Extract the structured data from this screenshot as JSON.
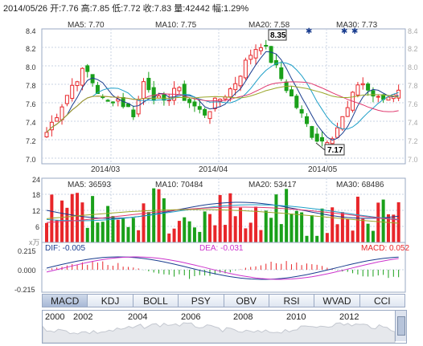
{
  "header": {
    "text": "2014/05/26 开:7.76  高:7.85  低:7.72  收:7.83  量:42442  幅:1.29%"
  },
  "price_panel": {
    "ma_labels": [
      {
        "text": "MA5: 7.70",
        "color": "#1a3d8f"
      },
      {
        "text": "MA10: 7.75",
        "color": "#1fa0c8"
      },
      {
        "text": "MA20: 7.58",
        "color": "#e0386e"
      },
      {
        "text": "MA30: 7.73",
        "color": "#9aa62a"
      }
    ],
    "y_ticks": [
      "8.4",
      "8.2",
      "8.0",
      "7.8",
      "7.6",
      "7.4",
      "7.2",
      "7.0"
    ],
    "x_labels": [
      "2014/03",
      "2014/04",
      "2014/05"
    ],
    "high_callout": "8.35",
    "low_callout": "7.17"
  },
  "volume_panel": {
    "ma_labels": [
      {
        "text": "MA5: 36593",
        "color": "#1a3d8f"
      },
      {
        "text": "MA10: 70484",
        "color": "#1fa0c8"
      },
      {
        "text": "MA20: 53417",
        "color": "#e0386e"
      },
      {
        "text": "MA30: 68486",
        "color": "#9aa62a"
      }
    ],
    "y_ticks": [
      "24",
      "18",
      "12",
      "6"
    ],
    "unit": "x万"
  },
  "macd_panel": {
    "dif_label": "DIF: -0.005",
    "dea_label": "DEA: -0.031",
    "macd_label": "MACD: 0.052",
    "y_ticks": [
      "0.215",
      "0.000",
      "-0.215"
    ]
  },
  "tabs": [
    "MACD",
    "KDJ",
    "BOLL",
    "PSY",
    "OBV",
    "RSI",
    "WVAD",
    "CCI"
  ],
  "active_tab": "MACD",
  "timeline": {
    "years": [
      "2000",
      "2002",
      "2004",
      "2006",
      "2008",
      "2010",
      "2012"
    ]
  },
  "colors": {
    "up": "#e8262a",
    "down": "#1aa01a",
    "grid": "#c9d3e3",
    "frame": "#9aa9c3"
  }
}
